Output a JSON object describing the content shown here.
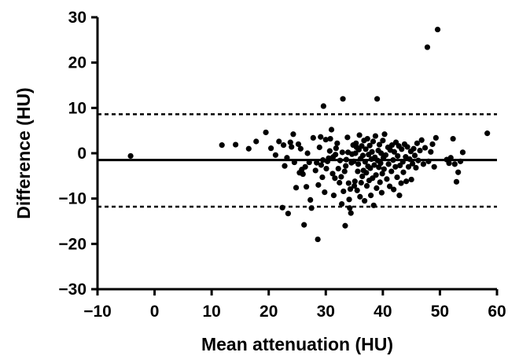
{
  "chart_data": {
    "type": "scatter",
    "title": "",
    "xlabel": "Mean attenuation (HU)",
    "ylabel": "Difference (HU)",
    "xlim": [
      -10,
      60
    ],
    "ylim": [
      -30,
      30
    ],
    "xticks": [
      -10,
      0,
      10,
      20,
      30,
      40,
      50,
      60
    ],
    "yticks": [
      -30,
      -20,
      -10,
      0,
      10,
      20,
      30
    ],
    "xtick_labels": [
      "−10",
      "0",
      "10",
      "20",
      "30",
      "40",
      "50",
      "60"
    ],
    "ytick_labels": [
      "−30",
      "−20",
      "−10",
      "0",
      "10",
      "20",
      "30"
    ],
    "grid": false,
    "reference_lines": [
      {
        "name": "mean difference",
        "y": -1.5,
        "style": "solid"
      },
      {
        "name": "upper limit of agreement",
        "y": 8.6,
        "style": "dashed"
      },
      {
        "name": "lower limit of agreement",
        "y": -11.8,
        "style": "dashed"
      }
    ],
    "series": [
      {
        "marker": "circle",
        "color": "#000000",
        "points": [
          [
            -4.2,
            -0.6
          ],
          [
            11.8,
            1.8
          ],
          [
            14.2,
            1.9
          ],
          [
            16.5,
            1.0
          ],
          [
            17.8,
            2.6
          ],
          [
            19.5,
            4.6
          ],
          [
            20.4,
            1.1
          ],
          [
            21.2,
            -0.4
          ],
          [
            21.8,
            2.6
          ],
          [
            22.4,
            -12.0
          ],
          [
            22.6,
            1.8
          ],
          [
            22.8,
            -2.8
          ],
          [
            23.2,
            -1.0
          ],
          [
            23.4,
            -13.3
          ],
          [
            23.8,
            2.4
          ],
          [
            24.0,
            1.4
          ],
          [
            24.3,
            4.2
          ],
          [
            24.5,
            -2.0
          ],
          [
            24.8,
            -7.6
          ],
          [
            25.2,
            2.0
          ],
          [
            25.4,
            -4.3
          ],
          [
            25.6,
            1.0
          ],
          [
            25.8,
            -3.6
          ],
          [
            26.0,
            -4.6
          ],
          [
            26.2,
            -15.8
          ],
          [
            26.4,
            -3.0
          ],
          [
            26.6,
            -7.4
          ],
          [
            26.8,
            0.0
          ],
          [
            27.1,
            -2.0
          ],
          [
            27.3,
            -10.3
          ],
          [
            27.5,
            -12.1
          ],
          [
            27.8,
            3.4
          ],
          [
            28.2,
            -3.8
          ],
          [
            28.4,
            -2.1
          ],
          [
            28.6,
            -19.0
          ],
          [
            28.7,
            -7.0
          ],
          [
            28.9,
            1.3
          ],
          [
            29.1,
            3.6
          ],
          [
            29.2,
            -2.6
          ],
          [
            29.4,
            -5.3
          ],
          [
            29.5,
            -1.5
          ],
          [
            29.6,
            10.4
          ],
          [
            29.8,
            -8.6
          ],
          [
            30.0,
            3.0
          ],
          [
            30.1,
            -3.4
          ],
          [
            30.3,
            -1.8
          ],
          [
            30.5,
            -1.1
          ],
          [
            30.7,
            0.5
          ],
          [
            30.8,
            3.2
          ],
          [
            31.0,
            5.2
          ],
          [
            31.2,
            -4.5
          ],
          [
            31.3,
            -0.8
          ],
          [
            31.4,
            -9.3
          ],
          [
            31.6,
            -5.5
          ],
          [
            31.7,
            -0.3
          ],
          [
            31.8,
            1.1
          ],
          [
            32.0,
            2.2
          ],
          [
            32.2,
            -3.4
          ],
          [
            32.4,
            -6.5
          ],
          [
            32.5,
            -1.6
          ],
          [
            32.7,
            -5.2
          ],
          [
            32.8,
            -11.2
          ],
          [
            32.9,
            0.2
          ],
          [
            33.0,
            12.0
          ],
          [
            33.1,
            -8.4
          ],
          [
            33.3,
            -4.0
          ],
          [
            33.4,
            -16.0
          ],
          [
            33.5,
            -2.8
          ],
          [
            33.6,
            -1.4
          ],
          [
            33.8,
            3.5
          ],
          [
            33.9,
            0.2
          ],
          [
            34.0,
            -6.6
          ],
          [
            34.1,
            -10.2
          ],
          [
            34.2,
            -12.1
          ],
          [
            34.3,
            -7.9
          ],
          [
            34.4,
            -13.2
          ],
          [
            34.5,
            -2.1
          ],
          [
            34.6,
            -0.2
          ],
          [
            34.8,
            1.8
          ],
          [
            34.9,
            -1.8
          ],
          [
            35.0,
            -7.2
          ],
          [
            35.1,
            -6.2
          ],
          [
            35.2,
            0.0
          ],
          [
            35.3,
            2.2
          ],
          [
            35.4,
            1.3
          ],
          [
            35.5,
            -8.2
          ],
          [
            35.6,
            -4.0
          ],
          [
            35.7,
            -2.4
          ],
          [
            35.8,
            0.8
          ],
          [
            35.9,
            4.0
          ],
          [
            36.0,
            -9.6
          ],
          [
            36.1,
            -1.2
          ],
          [
            36.2,
            -6.5
          ],
          [
            36.3,
            1.6
          ],
          [
            36.4,
            -5.1
          ],
          [
            36.5,
            -0.5
          ],
          [
            36.6,
            -3.8
          ],
          [
            36.7,
            2.8
          ],
          [
            36.8,
            -10.5
          ],
          [
            36.9,
            -1.9
          ],
          [
            37.0,
            0.9
          ],
          [
            37.1,
            -4.3
          ],
          [
            37.2,
            -7.2
          ],
          [
            37.3,
            3.2
          ],
          [
            37.4,
            -2.9
          ],
          [
            37.5,
            -0.3
          ],
          [
            37.6,
            -6.0
          ],
          [
            37.7,
            1.7
          ],
          [
            37.8,
            -3.3
          ],
          [
            37.9,
            -9.3
          ],
          [
            38.0,
            -1.3
          ],
          [
            38.1,
            0.3
          ],
          [
            38.2,
            -5.5
          ],
          [
            38.3,
            2.6
          ],
          [
            38.4,
            -11.5
          ],
          [
            38.5,
            -2.6
          ],
          [
            38.6,
            -0.9
          ],
          [
            38.7,
            3.8
          ],
          [
            38.8,
            -4.8
          ],
          [
            38.9,
            -7.7
          ],
          [
            39.0,
            12.0
          ],
          [
            39.1,
            -1.6
          ],
          [
            39.2,
            0.6
          ],
          [
            39.3,
            -3.1
          ],
          [
            39.4,
            1.9
          ],
          [
            39.5,
            -6.4
          ],
          [
            39.6,
            -2.2
          ],
          [
            39.7,
            0.0
          ],
          [
            39.8,
            -8.7
          ],
          [
            39.9,
            -4.5
          ],
          [
            40.0,
            2.8
          ],
          [
            40.1,
            -1.0
          ],
          [
            40.2,
            -3.5
          ],
          [
            40.3,
            4.2
          ],
          [
            40.5,
            -0.4
          ],
          [
            40.7,
            -5.7
          ],
          [
            40.9,
            1.3
          ],
          [
            41.0,
            -2.4
          ],
          [
            41.2,
            -7.3
          ],
          [
            41.3,
            0.7
          ],
          [
            41.5,
            -4.0
          ],
          [
            41.6,
            1.8
          ],
          [
            41.8,
            -1.5
          ],
          [
            41.9,
            -8.0
          ],
          [
            42.0,
            0.3
          ],
          [
            42.2,
            -3.0
          ],
          [
            42.3,
            2.4
          ],
          [
            42.5,
            -5.3
          ],
          [
            42.6,
            -0.6
          ],
          [
            42.8,
            1.6
          ],
          [
            42.9,
            -9.3
          ],
          [
            43.0,
            -2.7
          ],
          [
            43.2,
            -6.6
          ],
          [
            43.3,
            0.9
          ],
          [
            43.5,
            -1.9
          ],
          [
            43.6,
            -4.2
          ],
          [
            43.8,
            2.0
          ],
          [
            44.0,
            -0.8
          ],
          [
            44.1,
            -6.2
          ],
          [
            44.3,
            1.4
          ],
          [
            44.5,
            -3.0
          ],
          [
            44.7,
            -1.3
          ],
          [
            44.9,
            0.4
          ],
          [
            45.0,
            -5.8
          ],
          [
            45.2,
            -2.3
          ],
          [
            45.4,
            1.0
          ],
          [
            45.6,
            -0.5
          ],
          [
            45.8,
            -3.2
          ],
          [
            46.0,
            2.2
          ],
          [
            46.2,
            -1.6
          ],
          [
            46.5,
            0.6
          ],
          [
            46.8,
            2.9
          ],
          [
            47.1,
            -2.4
          ],
          [
            47.4,
            1.2
          ],
          [
            47.8,
            23.4
          ],
          [
            48.0,
            -1.8
          ],
          [
            48.4,
            0.3
          ],
          [
            48.7,
            2.0
          ],
          [
            49.0,
            -3.0
          ],
          [
            49.3,
            3.4
          ],
          [
            49.6,
            27.3
          ],
          [
            51.2,
            -1.4
          ],
          [
            51.6,
            -2.2
          ],
          [
            51.9,
            -1.0
          ],
          [
            52.3,
            3.2
          ],
          [
            52.6,
            -2.4
          ],
          [
            52.9,
            -6.3
          ],
          [
            53.2,
            -4.2
          ],
          [
            53.6,
            -1.8
          ],
          [
            54.0,
            0.2
          ],
          [
            58.3,
            4.4
          ]
        ]
      }
    ]
  }
}
